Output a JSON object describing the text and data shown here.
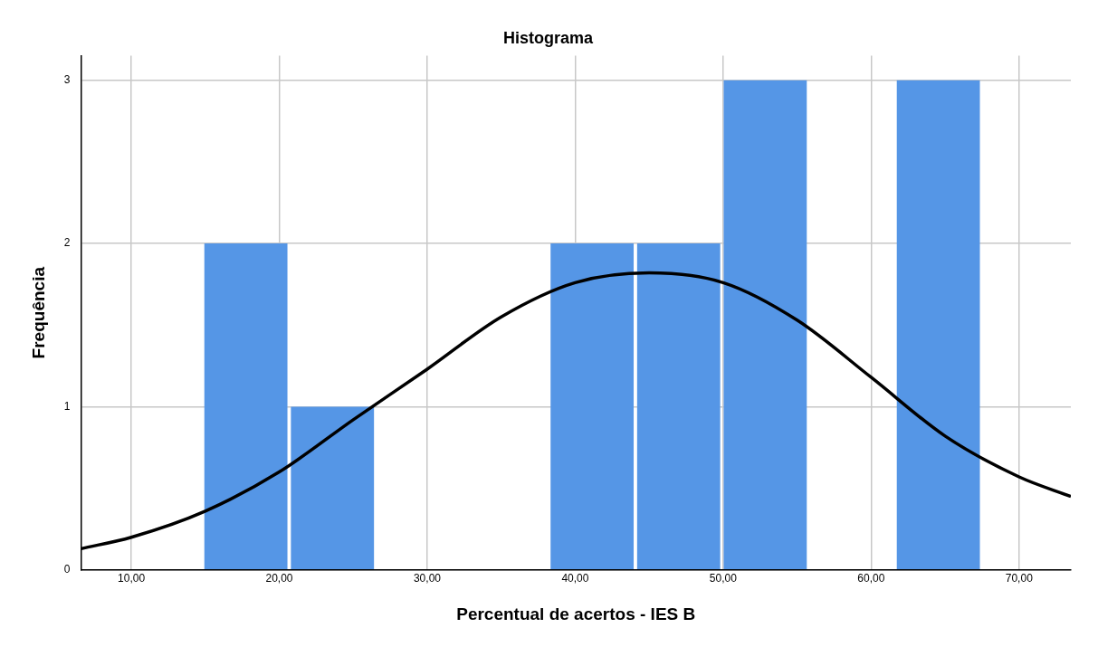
{
  "chart_data": {
    "type": "histogram",
    "title": "Histograma",
    "xlabel": "Percentual de acertos - IES B",
    "ylabel": "Frequência",
    "bins": [
      14.82,
      20.67,
      26.52,
      32.37,
      38.22,
      44.07,
      49.92,
      55.77,
      61.62,
      67.47
    ],
    "values": [
      2,
      1,
      0,
      0,
      2,
      2,
      3,
      0,
      3
    ],
    "color": "#5596e6",
    "xlim": [
      6.6,
      73.5
    ],
    "xticks": [
      {
        "value": 10,
        "label": "10,00"
      },
      {
        "value": 20,
        "label": "20,00"
      },
      {
        "value": 30,
        "label": "30,00"
      },
      {
        "value": 40,
        "label": "40,00"
      },
      {
        "value": 50,
        "label": "50,00"
      },
      {
        "value": 60,
        "label": "60,00"
      },
      {
        "value": 70,
        "label": "70,00"
      }
    ],
    "ylim": [
      0,
      3.15
    ],
    "yticks": [
      0,
      1,
      2,
      3
    ],
    "grid": true,
    "legend": false,
    "series": [
      {
        "type": "line",
        "color": "#000000",
        "x": [
          6.6,
          10,
          15,
          20,
          25,
          30,
          35,
          40,
          45,
          50,
          55,
          60,
          65,
          70,
          73.5
        ],
        "values": [
          0.13,
          0.2,
          0.36,
          0.6,
          0.92,
          1.23,
          1.55,
          1.76,
          1.82,
          1.76,
          1.53,
          1.18,
          0.82,
          0.57,
          0.45
        ]
      }
    ]
  }
}
